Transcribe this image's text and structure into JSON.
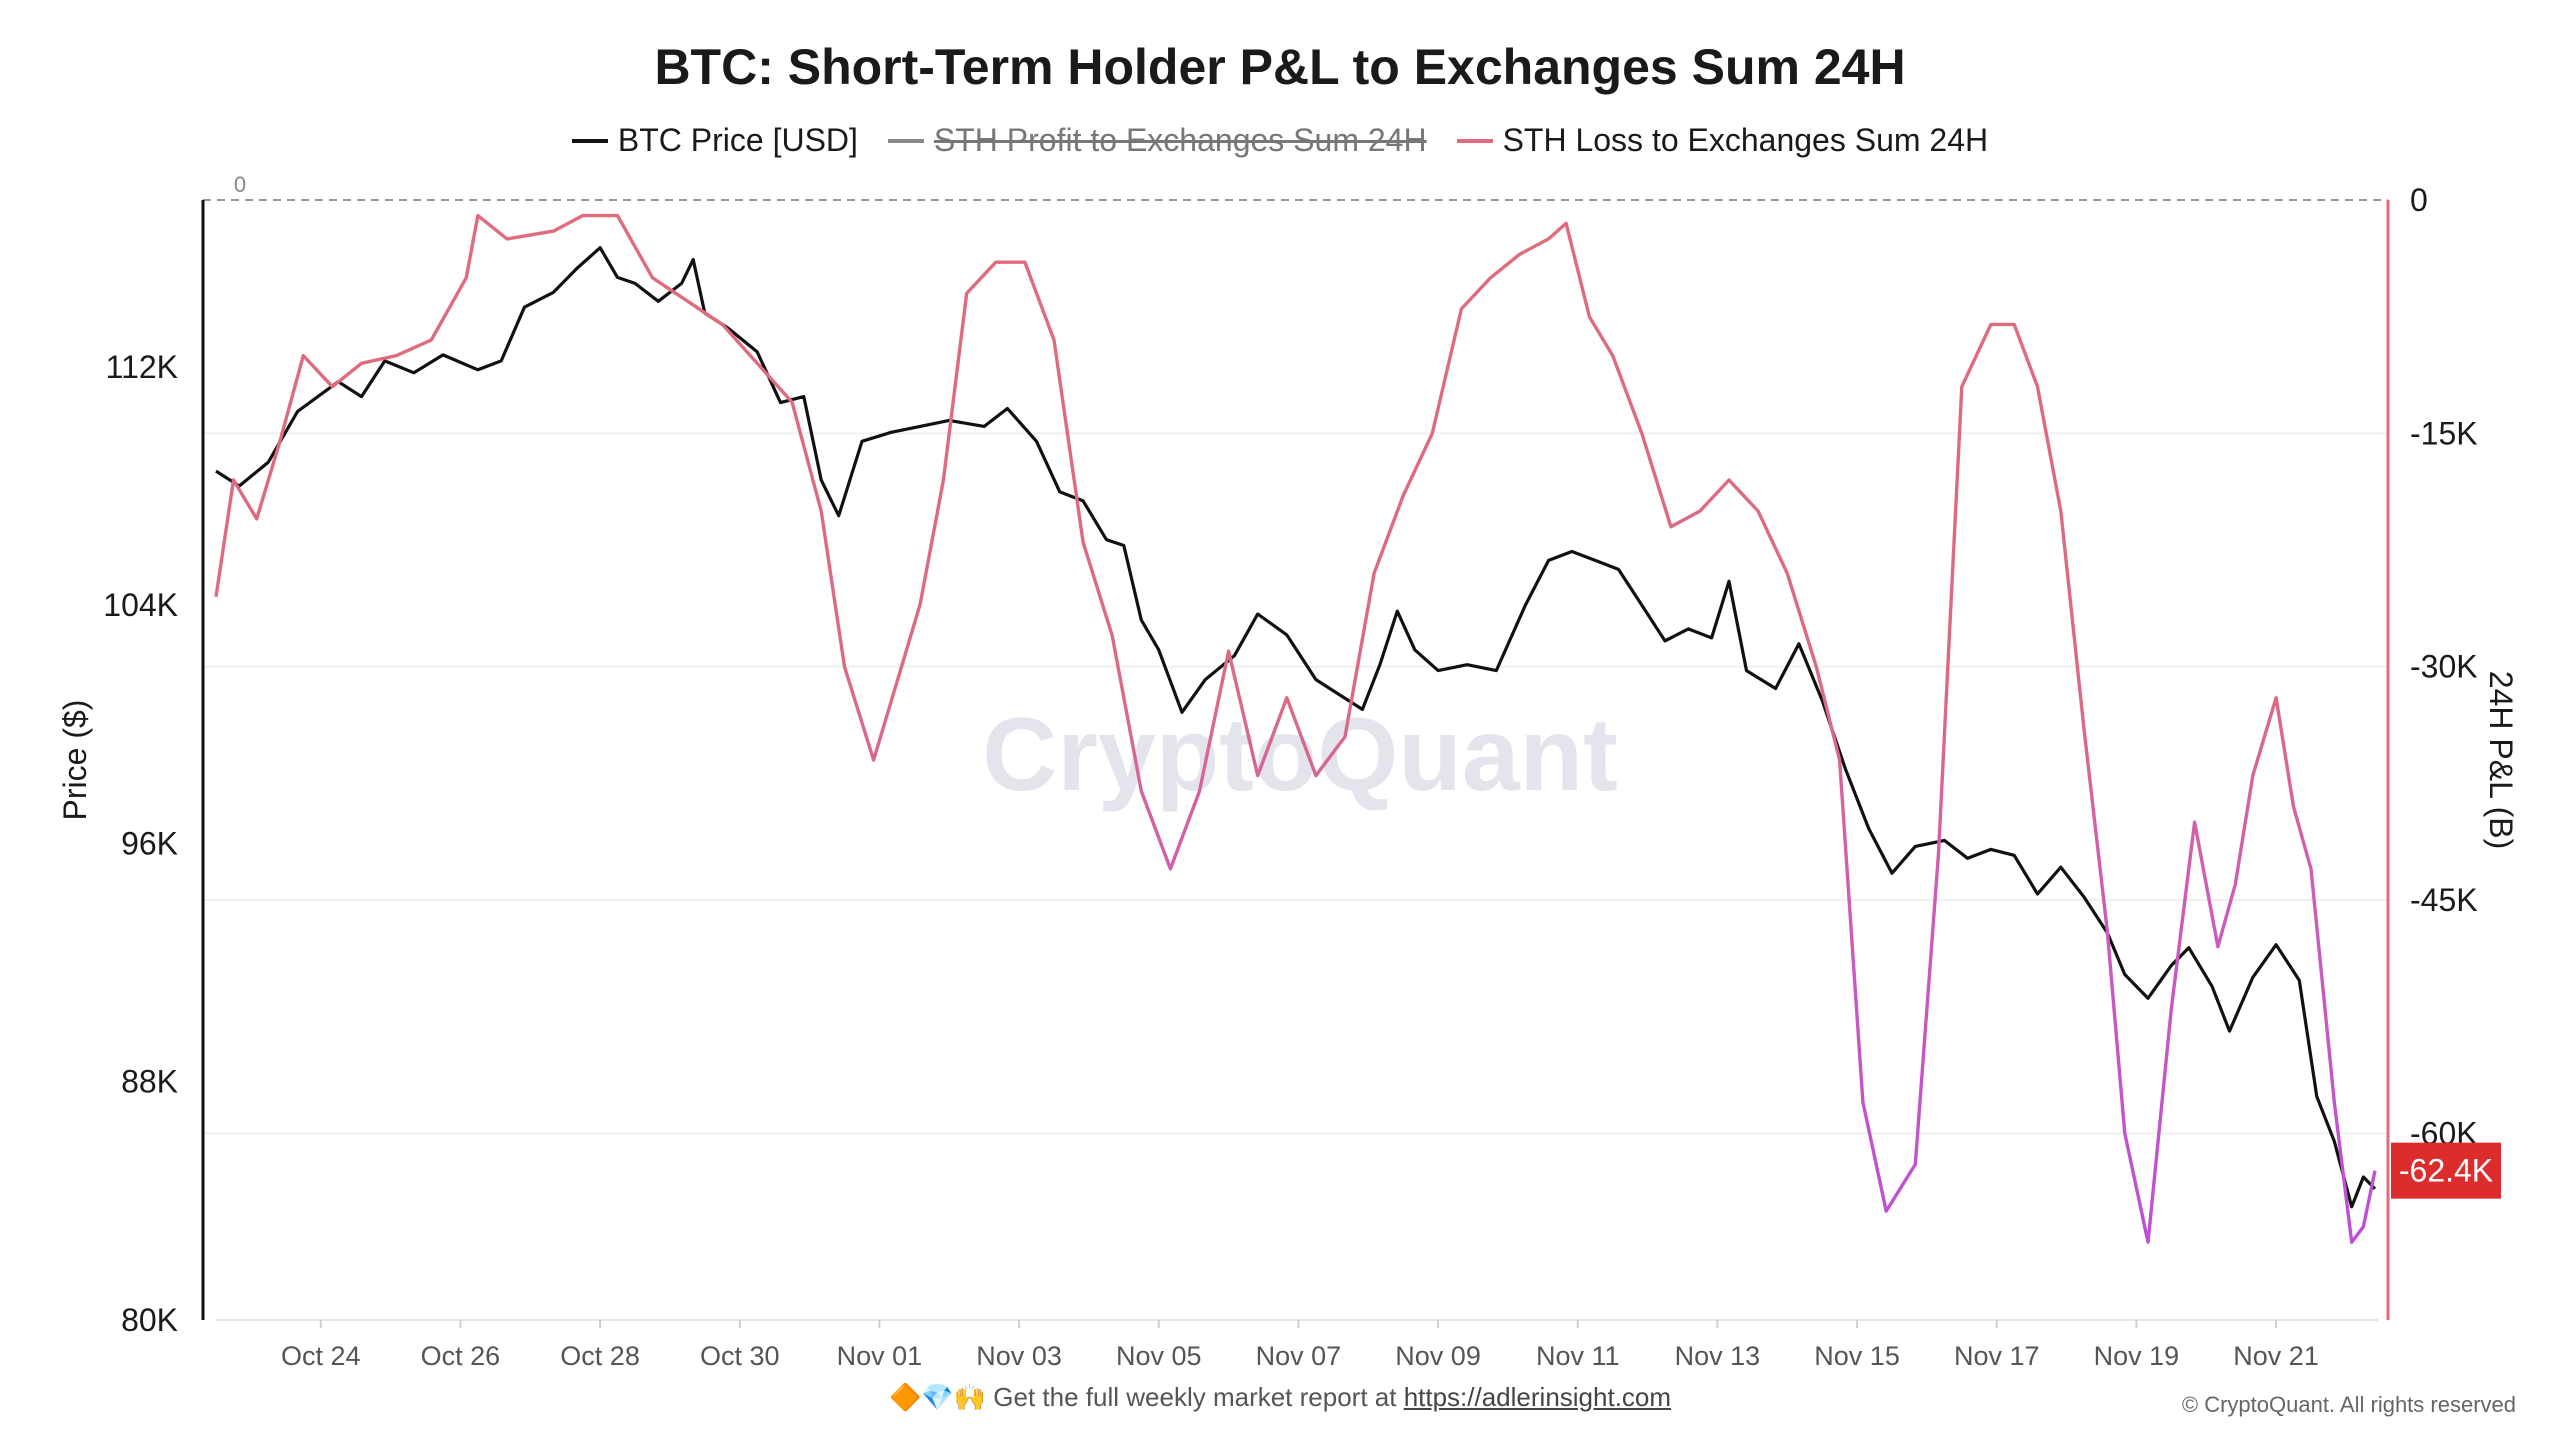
{
  "header": {
    "title": "BTC: Short-Term Holder P&L to Exchanges Sum 24H"
  },
  "legend": [
    {
      "label": "BTC Price [USD]",
      "color": "#111111",
      "enabled": true
    },
    {
      "label": "STH Profit to Exchanges Sum 24H",
      "color": "#888888",
      "enabled": false
    },
    {
      "label": "STH Loss to Exchanges Sum 24H",
      "color": "#e06b7c",
      "enabled": true
    }
  ],
  "watermark": "CryptoQuant",
  "footer": {
    "prefix": "🔶💎🙌 Get the full weekly market report at ",
    "link_text": "https://adlerinsight.com",
    "copyright": "© CryptoQuant. All rights reserved"
  },
  "chart_data": {
    "type": "line",
    "title": "BTC: Short-Term Holder P&L to Exchanges Sum 24H",
    "xlabel": "",
    "ylabel": "Price ($)",
    "y2label": "24H P&L (B)",
    "x_tick_labels": [
      "Oct 24",
      "Oct 26",
      "Oct 28",
      "Oct 30",
      "Nov 01",
      "Nov 03",
      "Nov 05",
      "Nov 07",
      "Nov 09",
      "Nov 11",
      "Nov 13",
      "Nov 15",
      "Nov 17",
      "Nov 19",
      "Nov 21"
    ],
    "x_range": [
      "2025-10-22 12:00",
      "2025-11-22 10:00"
    ],
    "y_left": {
      "ticks": [
        80000,
        88000,
        96000,
        104000,
        112000
      ],
      "tick_labels": [
        "80K",
        "88K",
        "96K",
        "104K",
        "112K"
      ],
      "range": [
        80000,
        117600
      ]
    },
    "y_right": {
      "ticks": [
        0,
        -15000,
        -30000,
        -45000,
        -60000
      ],
      "tick_labels": [
        "0",
        "-15K",
        "-30K",
        "-45K",
        "-60K"
      ],
      "range": [
        -72000,
        0
      ]
    },
    "zero_line_label": "0",
    "grid": true,
    "legend_position": "top-center",
    "last_value_badge": {
      "label": "-62.4K",
      "value": -62400,
      "color": "#dd2c2c"
    },
    "series": [
      {
        "name": "BTC Price [USD]",
        "axis": "left",
        "color": "#111111",
        "points": [
          [
            "2025-10-22 12:00",
            108500
          ],
          [
            "2025-10-22 20:00",
            108000
          ],
          [
            "2025-10-23 06:00",
            108800
          ],
          [
            "2025-10-23 16:00",
            110500
          ],
          [
            "2025-10-24 06:00",
            111500
          ],
          [
            "2025-10-24 14:00",
            111000
          ],
          [
            "2025-10-24 22:00",
            112200
          ],
          [
            "2025-10-25 08:00",
            111800
          ],
          [
            "2025-10-25 18:00",
            112400
          ],
          [
            "2025-10-26 06:00",
            111900
          ],
          [
            "2025-10-26 14:00",
            112200
          ],
          [
            "2025-10-26 22:00",
            114000
          ],
          [
            "2025-10-27 08:00",
            114500
          ],
          [
            "2025-10-27 16:00",
            115300
          ],
          [
            "2025-10-28 00:00",
            116000
          ],
          [
            "2025-10-28 06:00",
            115000
          ],
          [
            "2025-10-28 12:00",
            114800
          ],
          [
            "2025-10-28 20:00",
            114200
          ],
          [
            "2025-10-29 04:00",
            114800
          ],
          [
            "2025-10-29 08:00",
            115600
          ],
          [
            "2025-10-29 12:00",
            113800
          ],
          [
            "2025-10-29 20:00",
            113300
          ],
          [
            "2025-10-30 06:00",
            112500
          ],
          [
            "2025-10-30 14:00",
            110800
          ],
          [
            "2025-10-30 22:00",
            111000
          ],
          [
            "2025-10-31 04:00",
            108200
          ],
          [
            "2025-10-31 10:00",
            107000
          ],
          [
            "2025-10-31 18:00",
            109500
          ],
          [
            "2025-11-01 04:00",
            109800
          ],
          [
            "2025-11-01 14:00",
            110000
          ],
          [
            "2025-11-02 00:00",
            110200
          ],
          [
            "2025-11-02 12:00",
            110000
          ],
          [
            "2025-11-02 20:00",
            110600
          ],
          [
            "2025-11-03 06:00",
            109500
          ],
          [
            "2025-11-03 14:00",
            107800
          ],
          [
            "2025-11-03 22:00",
            107500
          ],
          [
            "2025-11-04 06:00",
            106200
          ],
          [
            "2025-11-04 12:00",
            106000
          ],
          [
            "2025-11-04 18:00",
            103500
          ],
          [
            "2025-11-05 00:00",
            102500
          ],
          [
            "2025-11-05 08:00",
            100400
          ],
          [
            "2025-11-05 16:00",
            101500
          ],
          [
            "2025-11-06 02:00",
            102300
          ],
          [
            "2025-11-06 10:00",
            103700
          ],
          [
            "2025-11-06 20:00",
            103000
          ],
          [
            "2025-11-07 06:00",
            101500
          ],
          [
            "2025-11-07 14:00",
            101000
          ],
          [
            "2025-11-07 22:00",
            100500
          ],
          [
            "2025-11-08 04:00",
            102000
          ],
          [
            "2025-11-08 10:00",
            103800
          ],
          [
            "2025-11-08 16:00",
            102500
          ],
          [
            "2025-11-09 00:00",
            101800
          ],
          [
            "2025-11-09 10:00",
            102000
          ],
          [
            "2025-11-09 20:00",
            101800
          ],
          [
            "2025-11-10 06:00",
            104000
          ],
          [
            "2025-11-10 14:00",
            105500
          ],
          [
            "2025-11-10 22:00",
            105800
          ],
          [
            "2025-11-11 06:00",
            105500
          ],
          [
            "2025-11-11 14:00",
            105200
          ],
          [
            "2025-11-11 22:00",
            104000
          ],
          [
            "2025-11-12 06:00",
            102800
          ],
          [
            "2025-11-12 14:00",
            103200
          ],
          [
            "2025-11-12 22:00",
            102900
          ],
          [
            "2025-11-13 04:00",
            104800
          ],
          [
            "2025-11-13 10:00",
            101800
          ],
          [
            "2025-11-13 20:00",
            101200
          ],
          [
            "2025-11-14 04:00",
            102700
          ],
          [
            "2025-11-14 12:00",
            100800
          ],
          [
            "2025-11-14 20:00",
            98500
          ],
          [
            "2025-11-15 04:00",
            96500
          ],
          [
            "2025-11-15 12:00",
            95000
          ],
          [
            "2025-11-15 20:00",
            95900
          ],
          [
            "2025-11-16 06:00",
            96100
          ],
          [
            "2025-11-16 14:00",
            95500
          ],
          [
            "2025-11-16 22:00",
            95800
          ],
          [
            "2025-11-17 06:00",
            95600
          ],
          [
            "2025-11-17 14:00",
            94300
          ],
          [
            "2025-11-17 22:00",
            95200
          ],
          [
            "2025-11-18 06:00",
            94200
          ],
          [
            "2025-11-18 14:00",
            93000
          ],
          [
            "2025-11-18 20:00",
            91600
          ],
          [
            "2025-11-19 04:00",
            90800
          ],
          [
            "2025-11-19 12:00",
            91900
          ],
          [
            "2025-11-19 18:00",
            92500
          ],
          [
            "2025-11-20 02:00",
            91200
          ],
          [
            "2025-11-20 08:00",
            89700
          ],
          [
            "2025-11-20 16:00",
            91500
          ],
          [
            "2025-11-21 00:00",
            92600
          ],
          [
            "2025-11-21 08:00",
            91400
          ],
          [
            "2025-11-21 14:00",
            87500
          ],
          [
            "2025-11-21 20:00",
            86000
          ],
          [
            "2025-11-22 02:00",
            83800
          ],
          [
            "2025-11-22 06:00",
            84800
          ],
          [
            "2025-11-22 10:00",
            84400
          ]
        ]
      },
      {
        "name": "STH Loss to Exchanges Sum 24H",
        "axis": "right",
        "color": "#e06b7c",
        "color_low": "#c44fd8",
        "points": [
          [
            "2025-10-22 12:00",
            -25500
          ],
          [
            "2025-10-22 18:00",
            -18000
          ],
          [
            "2025-10-23 02:00",
            -20500
          ],
          [
            "2025-10-23 10:00",
            -15500
          ],
          [
            "2025-10-23 18:00",
            -10000
          ],
          [
            "2025-10-24 04:00",
            -12000
          ],
          [
            "2025-10-24 14:00",
            -10500
          ],
          [
            "2025-10-25 02:00",
            -10000
          ],
          [
            "2025-10-25 14:00",
            -9000
          ],
          [
            "2025-10-26 02:00",
            -5000
          ],
          [
            "2025-10-26 06:00",
            -1000
          ],
          [
            "2025-10-26 16:00",
            -2500
          ],
          [
            "2025-10-27 08:00",
            -2000
          ],
          [
            "2025-10-27 18:00",
            -1000
          ],
          [
            "2025-10-28 06:00",
            -1000
          ],
          [
            "2025-10-28 18:00",
            -5000
          ],
          [
            "2025-10-29 06:00",
            -6500
          ],
          [
            "2025-10-29 18:00",
            -8000
          ],
          [
            "2025-10-30 06:00",
            -10500
          ],
          [
            "2025-10-30 18:00",
            -13000
          ],
          [
            "2025-10-31 04:00",
            -20000
          ],
          [
            "2025-10-31 12:00",
            -30000
          ],
          [
            "2025-10-31 22:00",
            -36000
          ],
          [
            "2025-11-01 06:00",
            -31000
          ],
          [
            "2025-11-01 14:00",
            -26000
          ],
          [
            "2025-11-01 22:00",
            -18000
          ],
          [
            "2025-11-02 06:00",
            -6000
          ],
          [
            "2025-11-02 16:00",
            -4000
          ],
          [
            "2025-11-03 02:00",
            -4000
          ],
          [
            "2025-11-03 12:00",
            -9000
          ],
          [
            "2025-11-03 22:00",
            -22000
          ],
          [
            "2025-11-04 08:00",
            -28000
          ],
          [
            "2025-11-04 18:00",
            -38000
          ],
          [
            "2025-11-05 04:00",
            -43000
          ],
          [
            "2025-11-05 14:00",
            -38000
          ],
          [
            "2025-11-06 00:00",
            -29000
          ],
          [
            "2025-11-06 10:00",
            -37000
          ],
          [
            "2025-11-06 20:00",
            -32000
          ],
          [
            "2025-11-07 06:00",
            -37000
          ],
          [
            "2025-11-07 16:00",
            -34500
          ],
          [
            "2025-11-08 02:00",
            -24000
          ],
          [
            "2025-11-08 12:00",
            -19000
          ],
          [
            "2025-11-08 22:00",
            -15000
          ],
          [
            "2025-11-09 08:00",
            -7000
          ],
          [
            "2025-11-09 18:00",
            -5000
          ],
          [
            "2025-11-10 04:00",
            -3500
          ],
          [
            "2025-11-10 14:00",
            -2500
          ],
          [
            "2025-11-10 20:00",
            -1500
          ],
          [
            "2025-11-11 04:00",
            -7500
          ],
          [
            "2025-11-11 12:00",
            -10000
          ],
          [
            "2025-11-11 22:00",
            -15000
          ],
          [
            "2025-11-12 08:00",
            -21000
          ],
          [
            "2025-11-12 18:00",
            -20000
          ],
          [
            "2025-11-13 04:00",
            -18000
          ],
          [
            "2025-11-13 14:00",
            -20000
          ],
          [
            "2025-11-14 00:00",
            -24000
          ],
          [
            "2025-11-14 10:00",
            -30000
          ],
          [
            "2025-11-14 18:00",
            -36000
          ],
          [
            "2025-11-15 02:00",
            -58000
          ],
          [
            "2025-11-15 10:00",
            -65000
          ],
          [
            "2025-11-15 20:00",
            -62000
          ],
          [
            "2025-11-16 04:00",
            -42000
          ],
          [
            "2025-11-16 12:00",
            -12000
          ],
          [
            "2025-11-16 22:00",
            -8000
          ],
          [
            "2025-11-17 06:00",
            -8000
          ],
          [
            "2025-11-17 14:00",
            -12000
          ],
          [
            "2025-11-17 22:00",
            -20000
          ],
          [
            "2025-11-18 06:00",
            -34000
          ],
          [
            "2025-11-18 14:00",
            -47000
          ],
          [
            "2025-11-18 20:00",
            -60000
          ],
          [
            "2025-11-19 04:00",
            -67000
          ],
          [
            "2025-11-19 12:00",
            -52000
          ],
          [
            "2025-11-19 20:00",
            -40000
          ],
          [
            "2025-11-20 04:00",
            -48000
          ],
          [
            "2025-11-20 10:00",
            -44000
          ],
          [
            "2025-11-20 16:00",
            -37000
          ],
          [
            "2025-11-21 00:00",
            -32000
          ],
          [
            "2025-11-21 06:00",
            -39000
          ],
          [
            "2025-11-21 12:00",
            -43000
          ],
          [
            "2025-11-21 20:00",
            -58000
          ],
          [
            "2025-11-22 02:00",
            -67000
          ],
          [
            "2025-11-22 06:00",
            -66000
          ],
          [
            "2025-11-22 10:00",
            -62400
          ]
        ]
      }
    ]
  }
}
